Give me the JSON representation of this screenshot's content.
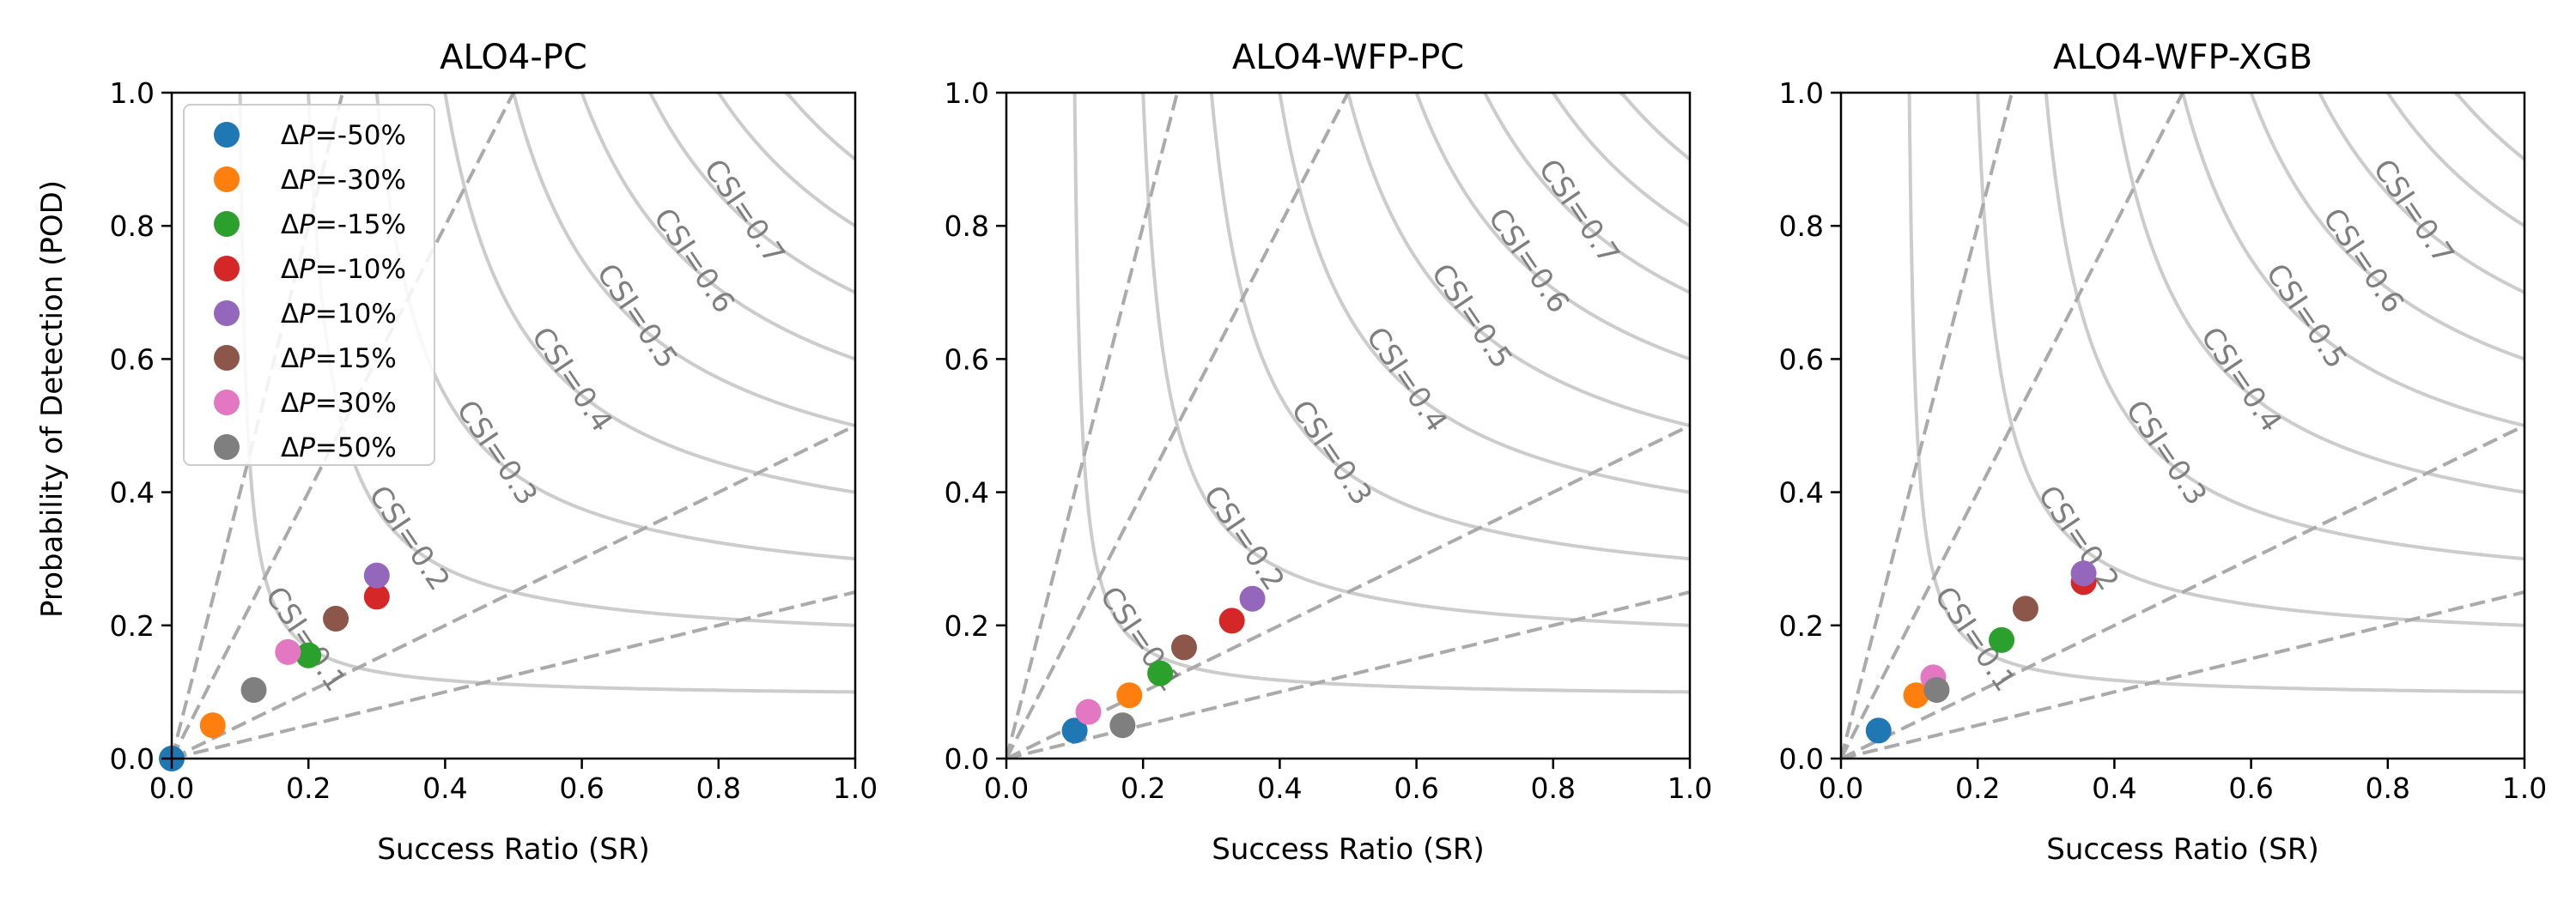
{
  "figure": {
    "ylabel_shared": "Probability of Detection (POD)"
  },
  "colors": {
    "frame": "#000000",
    "csi_contour": "#cccccc",
    "csi_label": "#7f7f7f",
    "bias_line": "#aaaaaa",
    "series": [
      "#1f77b4",
      "#ff7f0e",
      "#2ca02c",
      "#d62728",
      "#9467bd",
      "#8c564b",
      "#e377c2",
      "#7f7f7f"
    ]
  },
  "legend": {
    "symbol": "ΔP",
    "location": "upper-left of first panel",
    "labels": [
      "=-50%",
      "=-30%",
      "=-15%",
      "=-10%",
      "=10%",
      "=15%",
      "=30%",
      "=50%"
    ]
  },
  "csi_levels": [
    0.1,
    0.2,
    0.3,
    0.4,
    0.5,
    0.6,
    0.7,
    0.8,
    0.9
  ],
  "csi_labels": [
    "CSI=0.1",
    "CSI=0.2",
    "CSI=0.3",
    "CSI=0.4",
    "CSI=0.5",
    "CSI=0.6",
    "CSI=0.7"
  ],
  "bias_lines": [
    0.25,
    0.5,
    2,
    4
  ],
  "chart_data": [
    {
      "type": "scatter",
      "title": "ALO4-PC",
      "xlabel": "Success Ratio (SR)",
      "ylabel": "Probability of Detection (POD)",
      "xlim": [
        0,
        1
      ],
      "ylim": [
        0,
        1
      ],
      "xticks": [
        "0.0",
        "0.2",
        "0.4",
        "0.6",
        "0.8",
        "1.0"
      ],
      "yticks": [
        "0.0",
        "0.2",
        "0.4",
        "0.6",
        "0.8",
        "1.0"
      ],
      "series": [
        {
          "name": "ΔP=-50%",
          "x": 0.0,
          "y": 0.0
        },
        {
          "name": "ΔP=-30%",
          "x": 0.06,
          "y": 0.05
        },
        {
          "name": "ΔP=-15%",
          "x": 0.2,
          "y": 0.155
        },
        {
          "name": "ΔP=-10%",
          "x": 0.3,
          "y": 0.243
        },
        {
          "name": "ΔP=10%",
          "x": 0.3,
          "y": 0.275
        },
        {
          "name": "ΔP=15%",
          "x": 0.24,
          "y": 0.21
        },
        {
          "name": "ΔP=30%",
          "x": 0.17,
          "y": 0.16
        },
        {
          "name": "ΔP=50%",
          "x": 0.12,
          "y": 0.103
        }
      ]
    },
    {
      "type": "scatter",
      "title": "ALO4-WFP-PC",
      "xlabel": "Success Ratio (SR)",
      "ylabel": "",
      "xlim": [
        0,
        1
      ],
      "ylim": [
        0,
        1
      ],
      "xticks": [
        "0.0",
        "0.2",
        "0.4",
        "0.6",
        "0.8",
        "1.0"
      ],
      "yticks": [
        "0.0",
        "0.2",
        "0.4",
        "0.6",
        "0.8",
        "1.0"
      ],
      "series": [
        {
          "name": "ΔP=-50%",
          "x": 0.1,
          "y": 0.042
        },
        {
          "name": "ΔP=-30%",
          "x": 0.18,
          "y": 0.095
        },
        {
          "name": "ΔP=-15%",
          "x": 0.225,
          "y": 0.128
        },
        {
          "name": "ΔP=-10%",
          "x": 0.33,
          "y": 0.207
        },
        {
          "name": "ΔP=10%",
          "x": 0.36,
          "y": 0.24
        },
        {
          "name": "ΔP=15%",
          "x": 0.26,
          "y": 0.167
        },
        {
          "name": "ΔP=30%",
          "x": 0.12,
          "y": 0.07
        },
        {
          "name": "ΔP=50%",
          "x": 0.17,
          "y": 0.05
        }
      ]
    },
    {
      "type": "scatter",
      "title": "ALO4-WFP-XGB",
      "xlabel": "Success Ratio (SR)",
      "ylabel": "",
      "xlim": [
        0,
        1
      ],
      "ylim": [
        0,
        1
      ],
      "xticks": [
        "0.0",
        "0.2",
        "0.4",
        "0.6",
        "0.8",
        "1.0"
      ],
      "yticks": [
        "0.0",
        "0.2",
        "0.4",
        "0.6",
        "0.8",
        "1.0"
      ],
      "series": [
        {
          "name": "ΔP=-50%",
          "x": 0.055,
          "y": 0.042
        },
        {
          "name": "ΔP=-30%",
          "x": 0.11,
          "y": 0.095
        },
        {
          "name": "ΔP=-15%",
          "x": 0.235,
          "y": 0.178
        },
        {
          "name": "ΔP=-10%",
          "x": 0.355,
          "y": 0.265
        },
        {
          "name": "ΔP=10%",
          "x": 0.355,
          "y": 0.278
        },
        {
          "name": "ΔP=15%",
          "x": 0.27,
          "y": 0.225
        },
        {
          "name": "ΔP=30%",
          "x": 0.135,
          "y": 0.122
        },
        {
          "name": "ΔP=50%",
          "x": 0.14,
          "y": 0.103
        }
      ]
    }
  ]
}
